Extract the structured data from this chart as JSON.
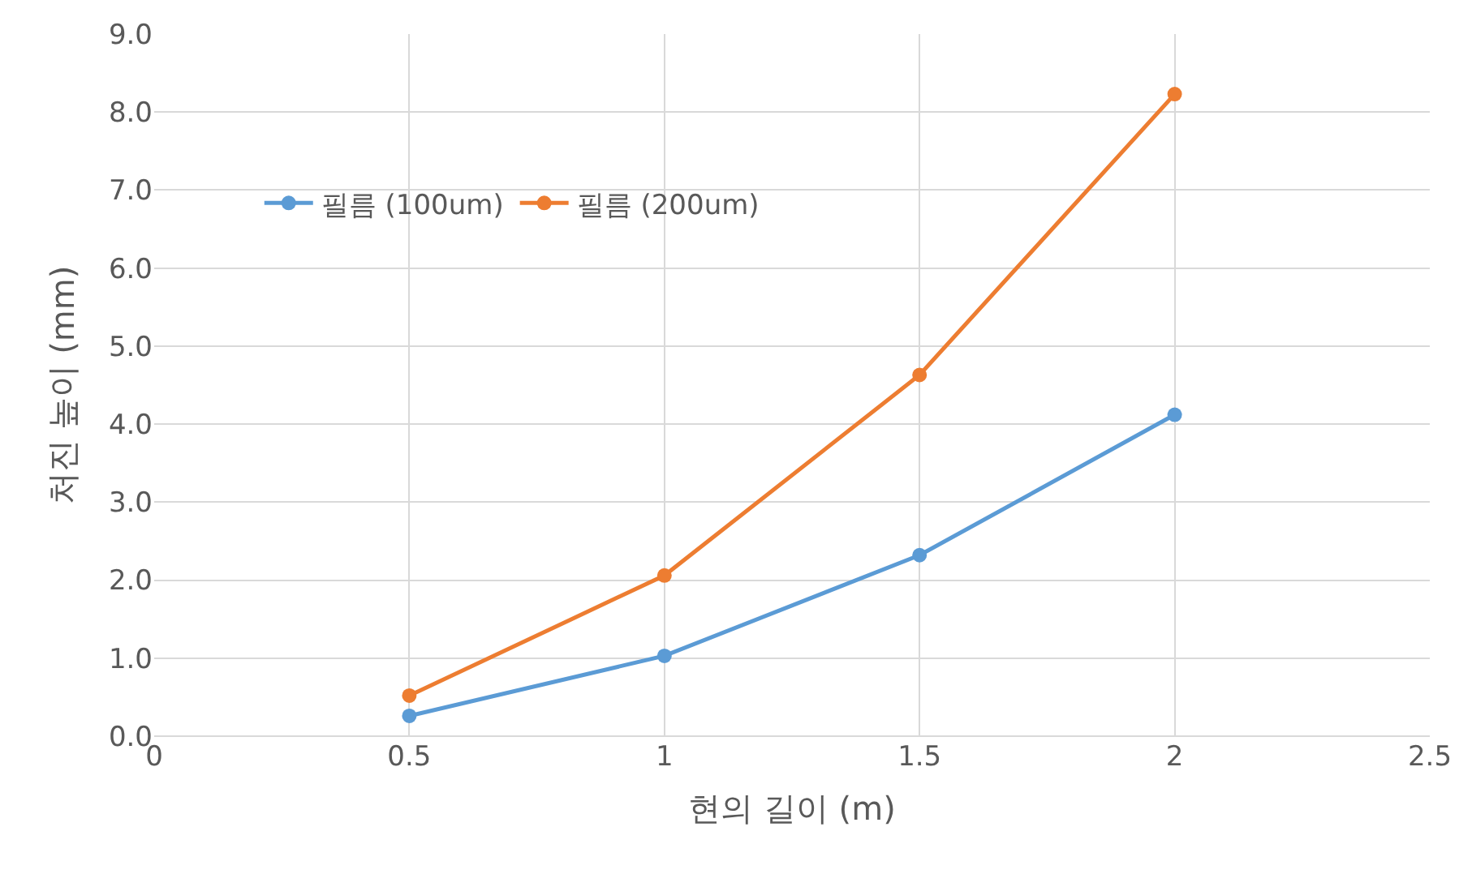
{
  "chart_data": {
    "type": "line",
    "xlabel": "현의 길이 (m)",
    "ylabel": "처진 높이 (mm)",
    "x": [
      0.5,
      1,
      1.5,
      2
    ],
    "series": [
      {
        "name": "필름 (100um)",
        "color": "#5b9bd5",
        "values": [
          0.26,
          1.03,
          2.32,
          4.12
        ]
      },
      {
        "name": "필름 (200um)",
        "color": "#ed7d31",
        "values": [
          0.52,
          2.06,
          4.63,
          8.23
        ]
      }
    ],
    "xlim": [
      0,
      2.5
    ],
    "xticks": [
      0,
      0.5,
      1,
      1.5,
      2,
      2.5
    ],
    "ylim": [
      0,
      9
    ],
    "yticks": [
      {
        "value": 0,
        "label": "0.0"
      },
      {
        "value": 1,
        "label": "1.0"
      },
      {
        "value": 2,
        "label": "2.0"
      },
      {
        "value": 3,
        "label": "3.0"
      },
      {
        "value": 4,
        "label": "4.0"
      },
      {
        "value": 5,
        "label": "5.0"
      },
      {
        "value": 6,
        "label": "6.0"
      },
      {
        "value": 7,
        "label": "7.0"
      },
      {
        "value": 8,
        "label": "8.0"
      },
      {
        "value": 9,
        "label": "9.0"
      }
    ],
    "grid": true,
    "legend": "top left",
    "marker": "circle",
    "line_style": "solid"
  }
}
